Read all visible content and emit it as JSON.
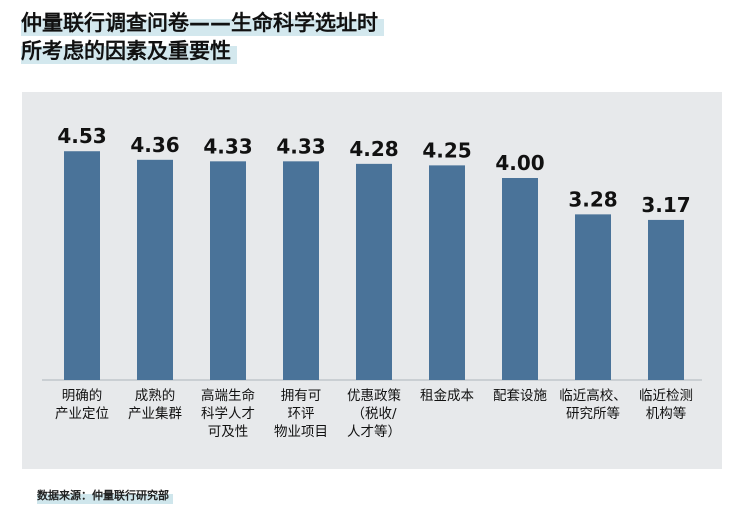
{
  "title_line1": "仲量联行调查问卷——生命科学选址时",
  "title_line2": "所考虑的因素及重要性",
  "source": "数据来源：仲量联行研究部",
  "colors": {
    "bar": "#4a7399",
    "panel": "#e7e9eb",
    "highlight": "#d3e8ee"
  },
  "chart_data": {
    "type": "bar",
    "title": "仲量联行调查问卷——生命科学选址时所考虑的因素及重要性",
    "categories": [
      [
        "明确的",
        "产业定位"
      ],
      [
        "成熟的",
        "产业集群"
      ],
      [
        "高端生命",
        "科学人才",
        "可及性"
      ],
      [
        "拥有可",
        "环评",
        "物业项目"
      ],
      [
        "优惠政策",
        "（税收/",
        "人才等）"
      ],
      [
        "租金成本"
      ],
      [
        "配套设施"
      ],
      [
        "临近高校、",
        "研究所等"
      ],
      [
        "临近检测",
        "机构等"
      ]
    ],
    "values": [
      4.53,
      4.36,
      4.33,
      4.33,
      4.28,
      4.25,
      4.0,
      3.28,
      3.17
    ],
    "value_labels": [
      "4.53",
      "4.36",
      "4.33",
      "4.33",
      "4.28",
      "4.25",
      "4.00",
      "3.28",
      "3.17"
    ],
    "ylim": [
      0,
      5
    ],
    "grid": false,
    "legend": "none"
  }
}
